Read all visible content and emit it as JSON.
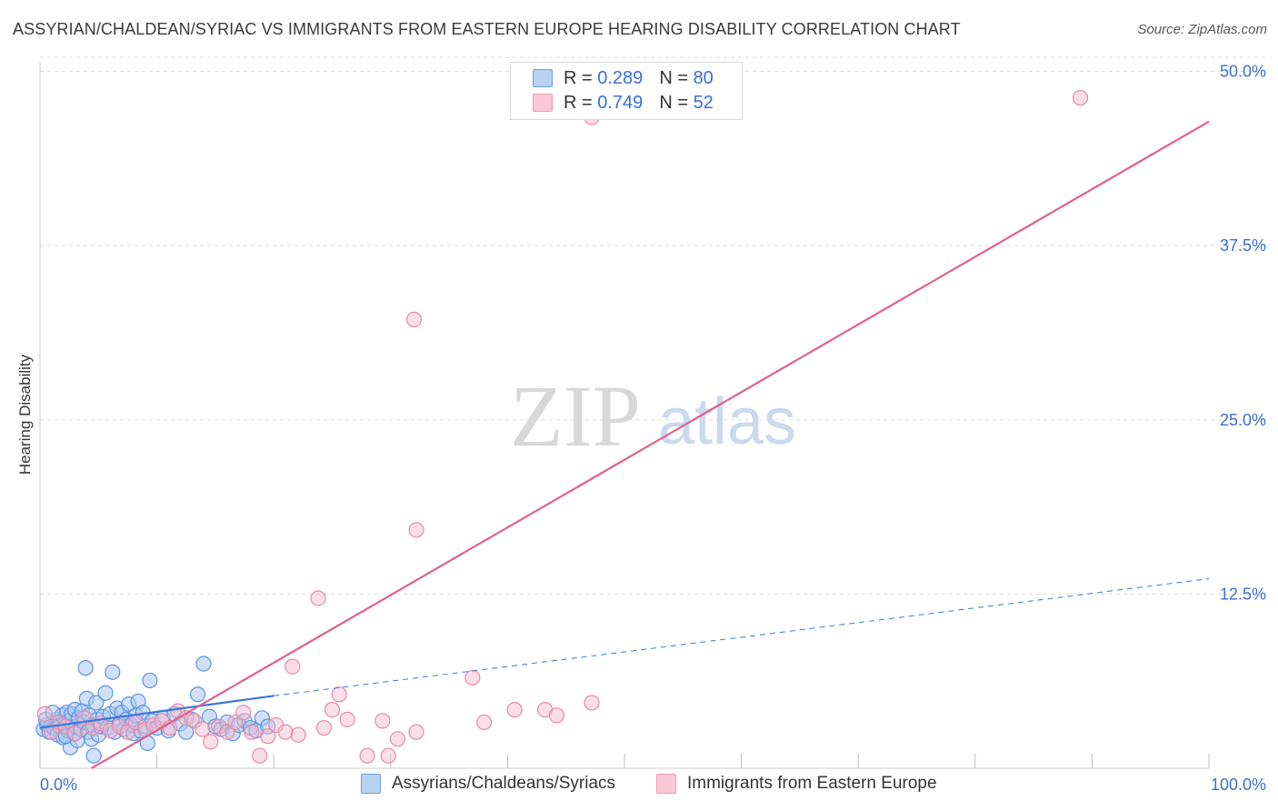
{
  "title": "ASSYRIAN/CHALDEAN/SYRIAC VS IMMIGRANTS FROM EASTERN EUROPE HEARING DISABILITY CORRELATION CHART",
  "source": "Source: ZipAtlas.com",
  "watermark": {
    "zip": "ZIP",
    "atlas": "atlas"
  },
  "legend": {
    "rows": [
      {
        "r_label": "R =",
        "r_value": "0.289",
        "n_label": "N =",
        "n_value": "80"
      },
      {
        "r_label": "R =",
        "r_value": "0.749",
        "n_label": "N =",
        "n_value": "52"
      }
    ]
  },
  "bottom_legend": {
    "series1": "Assyrians/Chaldeans/Syriacs",
    "series2": "Immigrants from Eastern Europe"
  },
  "colors": {
    "blue_fill": "#a9c8f0",
    "blue_stroke": "#5b93e0",
    "blue_line": "#3a78d8",
    "pink_fill": "#f7b9cc",
    "pink_stroke": "#e889a8",
    "pink_line": "#e0608e",
    "tick_label": "#3a6fd4",
    "grid": "#dddddd"
  },
  "chart_data": {
    "type": "scatter",
    "title": "ASSYRIAN/CHALDEAN/SYRIAC VS IMMIGRANTS FROM EASTERN EUROPE HEARING DISABILITY CORRELATION CHART",
    "xlabel": "",
    "ylabel": "Hearing Disability",
    "xlim": [
      0,
      100
    ],
    "ylim": [
      0,
      52
    ],
    "x_tick_labels": [
      "0.0%",
      "100.0%"
    ],
    "y_ticks": [
      12.5,
      25.0,
      37.5,
      50.0
    ],
    "y_tick_labels": [
      "12.5%",
      "25.0%",
      "37.5%",
      "50.0%"
    ],
    "grid": true,
    "legend_position": "top-center",
    "series": [
      {
        "name": "Assyrians/Chaldeans/Syriacs",
        "color": "#5b93e0",
        "points": [
          [
            0.3,
            2.8
          ],
          [
            0.6,
            3.1
          ],
          [
            0.8,
            2.6
          ],
          [
            1.0,
            3.3
          ],
          [
            1.2,
            2.9
          ],
          [
            1.4,
            3.5
          ],
          [
            1.5,
            2.4
          ],
          [
            1.7,
            3.0
          ],
          [
            1.9,
            3.8
          ],
          [
            2.0,
            2.2
          ],
          [
            2.1,
            3.2
          ],
          [
            2.3,
            4.0
          ],
          [
            2.4,
            2.7
          ],
          [
            2.5,
            3.4
          ],
          [
            2.6,
            1.5
          ],
          [
            2.7,
            3.9
          ],
          [
            2.9,
            2.5
          ],
          [
            3.0,
            4.2
          ],
          [
            3.1,
            3.0
          ],
          [
            3.2,
            2.0
          ],
          [
            3.3,
            3.6
          ],
          [
            3.5,
            2.8
          ],
          [
            3.6,
            4.1
          ],
          [
            3.8,
            3.3
          ],
          [
            3.9,
            7.2
          ],
          [
            4.0,
            5.0
          ],
          [
            4.1,
            2.6
          ],
          [
            4.2,
            3.8
          ],
          [
            4.4,
            2.1
          ],
          [
            4.5,
            3.1
          ],
          [
            4.6,
            0.9
          ],
          [
            4.8,
            4.7
          ],
          [
            4.9,
            3.5
          ],
          [
            5.0,
            2.4
          ],
          [
            5.2,
            3.0
          ],
          [
            5.4,
            3.7
          ],
          [
            5.6,
            5.4
          ],
          [
            5.8,
            2.9
          ],
          [
            6.0,
            3.9
          ],
          [
            6.2,
            6.9
          ],
          [
            6.4,
            2.6
          ],
          [
            6.6,
            4.3
          ],
          [
            6.8,
            3.2
          ],
          [
            7.0,
            4.0
          ],
          [
            7.2,
            2.8
          ],
          [
            7.4,
            3.5
          ],
          [
            7.6,
            4.6
          ],
          [
            7.8,
            3.1
          ],
          [
            8.0,
            2.5
          ],
          [
            8.2,
            3.8
          ],
          [
            8.4,
            4.8
          ],
          [
            8.6,
            2.7
          ],
          [
            8.8,
            4.0
          ],
          [
            9.0,
            3.0
          ],
          [
            9.2,
            1.8
          ],
          [
            9.4,
            6.3
          ],
          [
            9.6,
            3.4
          ],
          [
            10.0,
            2.9
          ],
          [
            10.5,
            3.6
          ],
          [
            11.0,
            2.7
          ],
          [
            11.5,
            3.9
          ],
          [
            12.0,
            3.2
          ],
          [
            12.5,
            2.6
          ],
          [
            13.0,
            3.5
          ],
          [
            13.5,
            5.3
          ],
          [
            14.0,
            7.5
          ],
          [
            14.5,
            3.7
          ],
          [
            15.0,
            3.0
          ],
          [
            15.5,
            2.8
          ],
          [
            16.0,
            3.3
          ],
          [
            16.5,
            2.5
          ],
          [
            17.0,
            3.1
          ],
          [
            17.5,
            3.4
          ],
          [
            18.0,
            2.9
          ],
          [
            18.5,
            2.7
          ],
          [
            19.0,
            3.6
          ],
          [
            19.5,
            3.0
          ],
          [
            0.5,
            3.5
          ],
          [
            1.1,
            4.0
          ],
          [
            2.2,
            2.3
          ]
        ]
      },
      {
        "name": "Immigrants from Eastern Europe",
        "color": "#e889a8",
        "points": [
          [
            0.4,
            3.9
          ],
          [
            1.0,
            2.6
          ],
          [
            1.6,
            3.3
          ],
          [
            2.2,
            3.0
          ],
          [
            3.0,
            2.5
          ],
          [
            3.8,
            3.6
          ],
          [
            4.5,
            2.9
          ],
          [
            5.2,
            3.2
          ],
          [
            6.0,
            2.7
          ],
          [
            6.8,
            3.0
          ],
          [
            7.5,
            2.6
          ],
          [
            8.2,
            3.3
          ],
          [
            9.0,
            2.8
          ],
          [
            9.7,
            3.1
          ],
          [
            10.4,
            3.4
          ],
          [
            11.1,
            2.9
          ],
          [
            11.8,
            4.1
          ],
          [
            12.5,
            3.6
          ],
          [
            13.2,
            3.4
          ],
          [
            13.9,
            2.8
          ],
          [
            14.6,
            1.9
          ],
          [
            15.3,
            3.0
          ],
          [
            16.0,
            2.6
          ],
          [
            16.7,
            3.3
          ],
          [
            17.4,
            4.0
          ],
          [
            18.1,
            2.6
          ],
          [
            18.8,
            0.9
          ],
          [
            19.5,
            2.3
          ],
          [
            20.2,
            3.1
          ],
          [
            21.0,
            2.6
          ],
          [
            21.6,
            7.3
          ],
          [
            22.1,
            2.4
          ],
          [
            23.8,
            12.2
          ],
          [
            24.3,
            2.9
          ],
          [
            25.0,
            4.2
          ],
          [
            25.6,
            5.3
          ],
          [
            26.3,
            3.5
          ],
          [
            28.0,
            0.9
          ],
          [
            29.8,
            0.9
          ],
          [
            29.3,
            3.4
          ],
          [
            30.6,
            2.1
          ],
          [
            32.2,
            2.6
          ],
          [
            32.0,
            32.2
          ],
          [
            32.2,
            17.1
          ],
          [
            37.0,
            6.5
          ],
          [
            38.0,
            3.3
          ],
          [
            40.6,
            4.2
          ],
          [
            43.2,
            4.2
          ],
          [
            44.2,
            3.8
          ],
          [
            47.2,
            4.7
          ],
          [
            47.2,
            46.7
          ],
          [
            89.0,
            48.1
          ]
        ]
      }
    ],
    "trend_lines": [
      {
        "series": "Assyrians/Chaldeans/Syriacs",
        "x": [
          0,
          20
        ],
        "y": [
          2.9,
          5.2
        ],
        "style": "solid"
      },
      {
        "series": "Assyrians/Chaldeans/Syriacs",
        "x": [
          20,
          100
        ],
        "y": [
          5.2,
          13.6
        ],
        "style": "dashed"
      },
      {
        "series": "Immigrants from Eastern Europe",
        "x": [
          4.4,
          100
        ],
        "y": [
          0,
          46.4
        ],
        "style": "solid"
      }
    ]
  }
}
